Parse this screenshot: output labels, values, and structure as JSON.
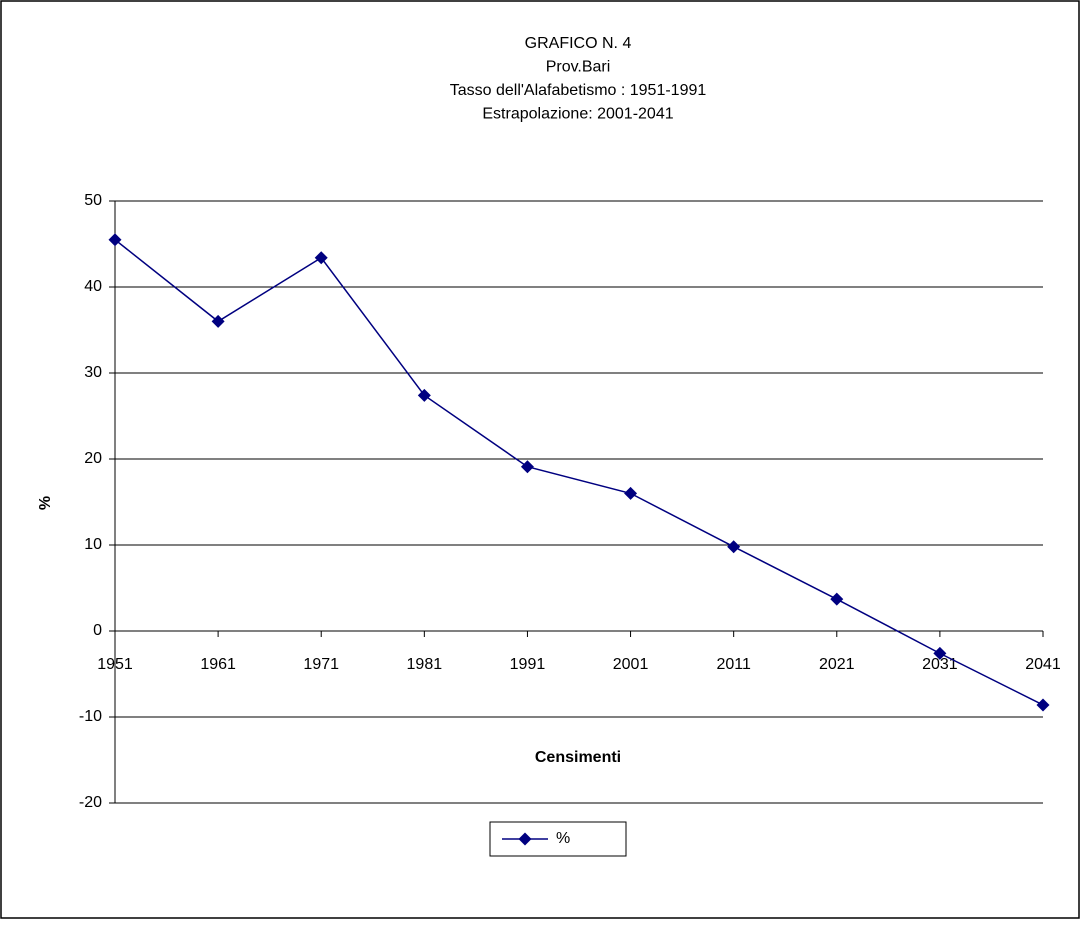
{
  "chart_data": {
    "type": "line",
    "title": [
      "GRAFICO N. 4",
      "Prov.Bari",
      "Tasso dell'Alafabetismo : 1951-1991",
      "Estrapolazione: 2001-2041"
    ],
    "x_label": "Censimenti",
    "y_label": "%",
    "categories": [
      "1951",
      "1961",
      "1971",
      "1981",
      "1991",
      "2001",
      "2011",
      "2021",
      "2031",
      "2041"
    ],
    "series": [
      {
        "name": "%",
        "color": "#000080",
        "values": [
          45.5,
          36.0,
          43.4,
          27.4,
          19.1,
          16.0,
          9.8,
          3.7,
          -2.6,
          -8.6
        ]
      }
    ],
    "ylim": [
      -20,
      50
    ],
    "yticks": [
      -20,
      -10,
      0,
      10,
      20,
      30,
      40,
      50
    ],
    "grid": true,
    "legend": "bottom"
  }
}
